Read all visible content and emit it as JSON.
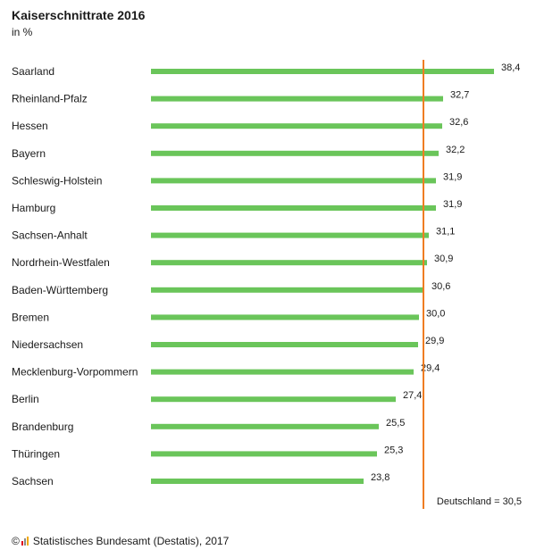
{
  "chart_data": {
    "type": "bar",
    "orientation": "horizontal",
    "title": "Kaiserschnittrate 2016",
    "subtitle": "in %",
    "categories": [
      "Saarland",
      "Rheinland-Pfalz",
      "Hessen",
      "Bayern",
      "Schleswig-Holstein",
      "Hamburg",
      "Sachsen-Anhalt",
      "Nordrhein-Westfalen",
      "Baden-Württemberg",
      "Bremen",
      "Niedersachsen",
      "Mecklenburg-Vorpommern",
      "Berlin",
      "Brandenburg",
      "Thüringen",
      "Sachsen"
    ],
    "values": [
      38.4,
      32.7,
      32.6,
      32.2,
      31.9,
      31.9,
      31.1,
      30.9,
      30.6,
      30.0,
      29.9,
      29.4,
      27.4,
      25.5,
      25.3,
      23.8
    ],
    "value_labels": [
      "38,4",
      "32,7",
      "32,6",
      "32,2",
      "31,9",
      "31,9",
      "31,1",
      "30,9",
      "30,6",
      "30,0",
      "29,9",
      "29,4",
      "27,4",
      "25,5",
      "25,3",
      "23,8"
    ],
    "reference_line": {
      "value": 30.5,
      "label": "Deutschland = 30,5",
      "color": "#ef7d22"
    },
    "bar_color": "#6ac55a",
    "grid": false,
    "legend": "none"
  },
  "footer": {
    "text": "© ",
    "source": "Statistisches Bundesamt (Destatis), 2017"
  }
}
